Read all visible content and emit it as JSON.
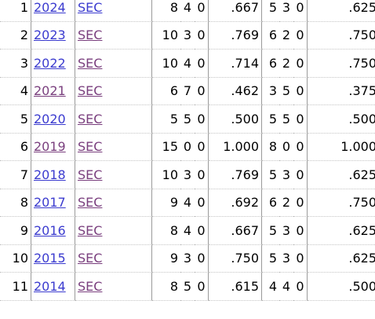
{
  "colors": {
    "link_unvisited": "#3b3bcf",
    "link_visited": "#7a3f7e",
    "grid_line": "#c4c4c4"
  },
  "rows": [
    {
      "rank": "1",
      "year": "2024",
      "year_visited": false,
      "conf": "SEC",
      "conf_visited": false,
      "w": "8",
      "l": "4",
      "t": "0",
      "pct": ".667",
      "cw": "5",
      "cl": "3",
      "ct": "0",
      "cpct": ".625"
    },
    {
      "rank": "2",
      "year": "2023",
      "year_visited": false,
      "conf": "SEC",
      "conf_visited": true,
      "w": "10",
      "l": "3",
      "t": "0",
      "pct": ".769",
      "cw": "6",
      "cl": "2",
      "ct": "0",
      "cpct": ".750"
    },
    {
      "rank": "3",
      "year": "2022",
      "year_visited": false,
      "conf": "SEC",
      "conf_visited": true,
      "w": "10",
      "l": "4",
      "t": "0",
      "pct": ".714",
      "cw": "6",
      "cl": "2",
      "ct": "0",
      "cpct": ".750"
    },
    {
      "rank": "4",
      "year": "2021",
      "year_visited": true,
      "conf": "SEC",
      "conf_visited": true,
      "w": "6",
      "l": "7",
      "t": "0",
      "pct": ".462",
      "cw": "3",
      "cl": "5",
      "ct": "0",
      "cpct": ".375"
    },
    {
      "rank": "5",
      "year": "2020",
      "year_visited": false,
      "conf": "SEC",
      "conf_visited": true,
      "w": "5",
      "l": "5",
      "t": "0",
      "pct": ".500",
      "cw": "5",
      "cl": "5",
      "ct": "0",
      "cpct": ".500"
    },
    {
      "rank": "6",
      "year": "2019",
      "year_visited": true,
      "conf": "SEC",
      "conf_visited": true,
      "w": "15",
      "l": "0",
      "t": "0",
      "pct": "1.000",
      "cw": "8",
      "cl": "0",
      "ct": "0",
      "cpct": "1.000"
    },
    {
      "rank": "7",
      "year": "2018",
      "year_visited": false,
      "conf": "SEC",
      "conf_visited": true,
      "w": "10",
      "l": "3",
      "t": "0",
      "pct": ".769",
      "cw": "5",
      "cl": "3",
      "ct": "0",
      "cpct": ".625"
    },
    {
      "rank": "8",
      "year": "2017",
      "year_visited": false,
      "conf": "SEC",
      "conf_visited": true,
      "w": "9",
      "l": "4",
      "t": "0",
      "pct": ".692",
      "cw": "6",
      "cl": "2",
      "ct": "0",
      "cpct": ".750"
    },
    {
      "rank": "9",
      "year": "2016",
      "year_visited": false,
      "conf": "SEC",
      "conf_visited": true,
      "w": "8",
      "l": "4",
      "t": "0",
      "pct": ".667",
      "cw": "5",
      "cl": "3",
      "ct": "0",
      "cpct": ".625"
    },
    {
      "rank": "10",
      "year": "2015",
      "year_visited": false,
      "conf": "SEC",
      "conf_visited": true,
      "w": "9",
      "l": "3",
      "t": "0",
      "pct": ".750",
      "cw": "5",
      "cl": "3",
      "ct": "0",
      "cpct": ".625"
    },
    {
      "rank": "11",
      "year": "2014",
      "year_visited": false,
      "conf": "SEC",
      "conf_visited": true,
      "w": "8",
      "l": "5",
      "t": "0",
      "pct": ".615",
      "cw": "4",
      "cl": "4",
      "ct": "0",
      "cpct": ".500"
    }
  ]
}
